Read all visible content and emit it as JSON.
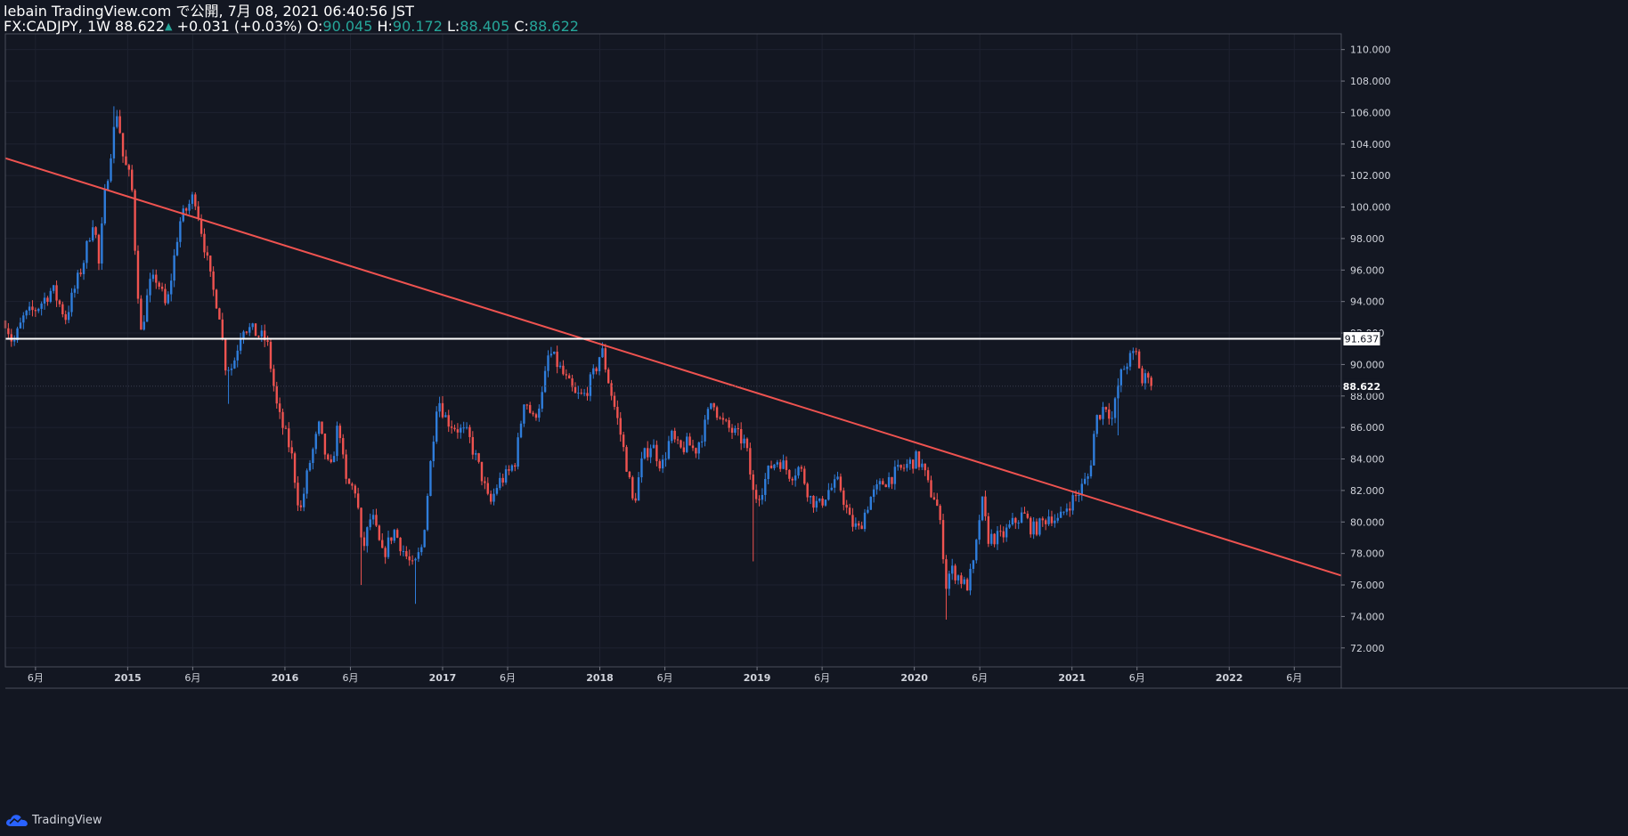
{
  "header": {
    "line1": "lebain TradingView.com で公開, 7月 08, 2021 06:40:56 JST",
    "symbol": "FX:CADJPY, 1W",
    "last": "88.622",
    "change": "+0.031 (+0.03%)",
    "o_label": "O:",
    "o_value": "90.045",
    "h_label": "H:",
    "h_value": "90.172",
    "l_label": "L:",
    "l_value": "88.405",
    "c_label": "C:",
    "c_value": "88.622"
  },
  "footer": {
    "brand": "TradingView",
    "icon": "tradingview-cloud-icon"
  },
  "colors": {
    "background": "#131722",
    "up": "#2f7ddb",
    "down": "#ef5350",
    "trendline": "#ef5350",
    "hline": "#ffffff",
    "axis_text": "#d1d4dc",
    "green_value": "#26a69a"
  },
  "chart_data": {
    "type": "candlestick",
    "symbol": "FX:CADJPY",
    "interval": "1W",
    "ylim": [
      70.8,
      111.0
    ],
    "y_ticks": [
      "72.000",
      "74.000",
      "76.000",
      "78.000",
      "80.000",
      "82.000",
      "84.000",
      "86.000",
      "88.000",
      "90.000",
      "92.000",
      "94.000",
      "96.000",
      "98.000",
      "100.000",
      "102.000",
      "104.000",
      "106.000",
      "108.000",
      "110.000"
    ],
    "x_range": [
      "2014-03-23",
      "2022-09-18"
    ],
    "x_ticks": [
      {
        "date": "2014-06-01",
        "label": "6月",
        "bold": false
      },
      {
        "date": "2015-01-01",
        "label": "2015",
        "bold": true
      },
      {
        "date": "2015-06-01",
        "label": "6月",
        "bold": false
      },
      {
        "date": "2016-01-01",
        "label": "2016",
        "bold": true
      },
      {
        "date": "2016-06-01",
        "label": "6月",
        "bold": false
      },
      {
        "date": "2017-01-01",
        "label": "2017",
        "bold": true
      },
      {
        "date": "2017-06-01",
        "label": "6月",
        "bold": false
      },
      {
        "date": "2018-01-01",
        "label": "2018",
        "bold": true
      },
      {
        "date": "2018-06-01",
        "label": "6月",
        "bold": false
      },
      {
        "date": "2019-01-01",
        "label": "2019",
        "bold": true
      },
      {
        "date": "2019-06-01",
        "label": "6月",
        "bold": false
      },
      {
        "date": "2020-01-01",
        "label": "2020",
        "bold": true
      },
      {
        "date": "2020-06-01",
        "label": "6月",
        "bold": false
      },
      {
        "date": "2021-01-01",
        "label": "2021",
        "bold": true
      },
      {
        "date": "2021-06-01",
        "label": "6月",
        "bold": false
      },
      {
        "date": "2022-01-01",
        "label": "2022",
        "bold": true
      },
      {
        "date": "2022-06-01",
        "label": "6月",
        "bold": false
      }
    ],
    "close_anchors": [
      [
        "2014-03-23",
        92.8
      ],
      [
        "2014-04-10",
        91.3
      ],
      [
        "2014-05-05",
        93.0
      ],
      [
        "2014-06-05",
        93.6
      ],
      [
        "2014-07-10",
        94.8
      ],
      [
        "2014-08-10",
        93.0
      ],
      [
        "2014-09-20",
        96.5
      ],
      [
        "2014-10-15",
        99.5
      ],
      [
        "2014-10-25",
        96.0
      ],
      [
        "2014-11-08",
        100.5
      ],
      [
        "2014-11-25",
        104.0
      ],
      [
        "2014-12-08",
        106.2
      ],
      [
        "2014-12-22",
        103.0
      ],
      [
        "2015-01-10",
        101.5
      ],
      [
        "2015-01-20",
        96.5
      ],
      [
        "2015-02-01",
        92.0
      ],
      [
        "2015-02-20",
        95.0
      ],
      [
        "2015-03-10",
        95.5
      ],
      [
        "2015-04-01",
        93.5
      ],
      [
        "2015-05-01",
        99.0
      ],
      [
        "2015-06-05",
        100.8
      ],
      [
        "2015-06-25",
        98.0
      ],
      [
        "2015-07-15",
        95.0
      ],
      [
        "2015-08-01",
        93.5
      ],
      [
        "2015-08-15",
        90.0
      ],
      [
        "2015-09-01",
        89.8
      ],
      [
        "2015-09-25",
        92.5
      ],
      [
        "2015-10-25",
        92.0
      ],
      [
        "2015-11-20",
        91.5
      ],
      [
        "2015-12-15",
        87.0
      ],
      [
        "2016-01-15",
        84.5
      ],
      [
        "2016-02-05",
        80.5
      ],
      [
        "2016-02-25",
        83.5
      ],
      [
        "2016-03-20",
        86.0
      ],
      [
        "2016-04-15",
        83.0
      ],
      [
        "2016-05-05",
        86.5
      ],
      [
        "2016-05-20",
        82.5
      ],
      [
        "2016-06-15",
        82.0
      ],
      [
        "2016-06-28",
        78.0
      ],
      [
        "2016-07-20",
        80.5
      ],
      [
        "2016-08-15",
        77.8
      ],
      [
        "2016-09-10",
        79.5
      ],
      [
        "2016-10-05",
        78.0
      ],
      [
        "2016-10-25",
        77.0
      ],
      [
        "2016-11-15",
        78.5
      ],
      [
        "2016-12-05",
        84.0
      ],
      [
        "2016-12-20",
        88.0
      ],
      [
        "2017-01-10",
        86.5
      ],
      [
        "2017-02-01",
        86.0
      ],
      [
        "2017-03-01",
        85.5
      ],
      [
        "2017-04-01",
        83.0
      ],
      [
        "2017-04-20",
        81.0
      ],
      [
        "2017-05-10",
        82.5
      ],
      [
        "2017-06-01",
        83.0
      ],
      [
        "2017-06-20",
        84.0
      ],
      [
        "2017-07-10",
        88.0
      ],
      [
        "2017-07-30",
        86.5
      ],
      [
        "2017-08-20",
        88.0
      ],
      [
        "2017-09-05",
        90.8
      ],
      [
        "2017-09-25",
        90.0
      ],
      [
        "2017-10-15",
        89.0
      ],
      [
        "2017-11-05",
        88.0
      ],
      [
        "2017-11-25",
        88.0
      ],
      [
        "2017-12-20",
        89.5
      ],
      [
        "2018-01-05",
        91.0
      ],
      [
        "2018-01-25",
        88.5
      ],
      [
        "2018-02-15",
        86.0
      ],
      [
        "2018-03-05",
        83.5
      ],
      [
        "2018-03-20",
        81.0
      ],
      [
        "2018-04-10",
        84.0
      ],
      [
        "2018-05-01",
        85.0
      ],
      [
        "2018-05-25",
        83.5
      ],
      [
        "2018-06-15",
        85.5
      ],
      [
        "2018-07-05",
        84.5
      ],
      [
        "2018-07-25",
        85.0
      ],
      [
        "2018-08-10",
        84.5
      ],
      [
        "2018-09-01",
        86.0
      ],
      [
        "2018-09-20",
        88.0
      ],
      [
        "2018-10-05",
        86.5
      ],
      [
        "2018-10-25",
        86.0
      ],
      [
        "2018-11-15",
        85.5
      ],
      [
        "2018-12-05",
        85.0
      ],
      [
        "2018-12-25",
        81.5
      ],
      [
        "2019-01-10",
        82.0
      ],
      [
        "2019-02-01",
        83.5
      ],
      [
        "2019-02-20",
        84.0
      ],
      [
        "2019-03-20",
        83.0
      ],
      [
        "2019-04-10",
        83.5
      ],
      [
        "2019-05-05",
        81.5
      ],
      [
        "2019-05-25",
        81.0
      ],
      [
        "2019-06-15",
        82.0
      ],
      [
        "2019-07-10",
        82.5
      ],
      [
        "2019-08-05",
        80.0
      ],
      [
        "2019-08-25",
        79.5
      ],
      [
        "2019-09-20",
        81.5
      ],
      [
        "2019-10-20",
        82.5
      ],
      [
        "2019-11-15",
        83.0
      ],
      [
        "2019-12-10",
        83.5
      ],
      [
        "2020-01-05",
        84.0
      ],
      [
        "2020-01-20",
        83.5
      ],
      [
        "2020-02-05",
        82.0
      ],
      [
        "2020-02-20",
        81.5
      ],
      [
        "2020-03-05",
        79.0
      ],
      [
        "2020-03-15",
        76.0
      ],
      [
        "2020-03-25",
        77.0
      ],
      [
        "2020-04-15",
        76.5
      ],
      [
        "2020-05-01",
        75.8
      ],
      [
        "2020-05-20",
        77.5
      ],
      [
        "2020-06-05",
        81.5
      ],
      [
        "2020-06-20",
        79.0
      ],
      [
        "2020-07-20",
        79.0
      ],
      [
        "2020-08-20",
        80.0
      ],
      [
        "2020-09-10",
        80.5
      ],
      [
        "2020-10-01",
        79.5
      ],
      [
        "2020-10-20",
        79.8
      ],
      [
        "2020-11-10",
        80.5
      ],
      [
        "2020-12-01",
        80.0
      ],
      [
        "2020-12-20",
        81.0
      ],
      [
        "2021-01-15",
        81.8
      ],
      [
        "2021-02-10",
        83.0
      ],
      [
        "2021-02-25",
        86.5
      ],
      [
        "2021-03-20",
        87.5
      ],
      [
        "2021-04-05",
        86.5
      ],
      [
        "2021-04-20",
        89.0
      ],
      [
        "2021-05-05",
        90.0
      ],
      [
        "2021-05-20",
        90.5
      ],
      [
        "2021-06-01",
        90.7
      ],
      [
        "2021-06-15",
        88.5
      ],
      [
        "2021-06-25",
        89.8
      ],
      [
        "2021-07-04",
        88.622
      ]
    ],
    "wick_spikes": [
      {
        "date": "2014-12-01",
        "kind": "high",
        "value": 106.4
      },
      {
        "date": "2015-08-20",
        "kind": "low",
        "value": 87.5
      },
      {
        "date": "2016-06-24",
        "kind": "low",
        "value": 76.0
      },
      {
        "date": "2016-11-02",
        "kind": "low",
        "value": 74.8
      },
      {
        "date": "2018-12-25",
        "kind": "low",
        "value": 77.5
      },
      {
        "date": "2020-03-16",
        "kind": "low",
        "value": 73.8
      },
      {
        "date": "2021-04-20",
        "kind": "low",
        "value": 85.5
      }
    ],
    "trendline": {
      "start": [
        "2014-03-23",
        103.1
      ],
      "end": [
        "2022-09-18",
        76.6
      ]
    },
    "horizontal_line": {
      "value": 91.637,
      "label": "91.637"
    },
    "last_price": {
      "value": 88.622,
      "label": "88.622"
    }
  }
}
